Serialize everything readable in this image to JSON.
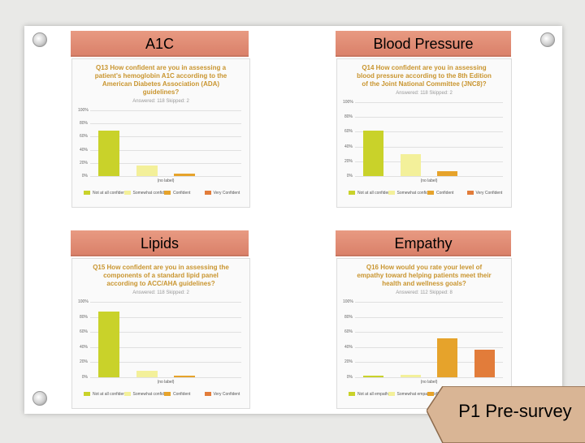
{
  "panels": [
    {
      "key": "a1c",
      "header": "A1C",
      "question": "Q13 How confident are you in assessing a\npatient's hemoglobin A1C according to the\nAmerican Diabetes Association (ADA)\nguidelines?",
      "answered": "Answered: 118    Skipped: 2",
      "chart_data": {
        "type": "bar",
        "categories": [
          "Not at all confident",
          "Somewhat confident",
          "Confident",
          "Very Confident"
        ],
        "values": [
          69,
          16,
          4,
          0
        ],
        "yticks": [
          "0%",
          "20%",
          "40%",
          "60%",
          "80%",
          "100%"
        ],
        "ylim": [
          0,
          100
        ],
        "xlabel": "(no label)",
        "colors": [
          "#c9d22a",
          "#f3f09a",
          "#e6a32b",
          "#e27c3a"
        ]
      }
    },
    {
      "key": "bp",
      "header": "Blood Pressure",
      "question": "Q14 How confident are you in assessing\nblood pressure according to the 8th Edition\nof the Joint National Committee (JNC8)?",
      "answered": "Answered: 118    Skipped: 2",
      "chart_data": {
        "type": "bar",
        "categories": [
          "Not at all confident",
          "Somewhat confident",
          "Confident",
          "Very Confident"
        ],
        "values": [
          61,
          30,
          7,
          0
        ],
        "yticks": [
          "0%",
          "20%",
          "40%",
          "60%",
          "80%",
          "100%"
        ],
        "ylim": [
          0,
          100
        ],
        "xlabel": "(no label)",
        "colors": [
          "#c9d22a",
          "#f3f09a",
          "#e6a32b",
          "#e27c3a"
        ]
      }
    },
    {
      "key": "lipids",
      "header": "Lipids",
      "question": "Q15 How confident are you in assessing the\ncomponents of a standard lipid panel\naccording to ACC/AHA guidelines?",
      "answered": "Answered: 118    Skipped: 2",
      "chart_data": {
        "type": "bar",
        "categories": [
          "Not at all confident",
          "Somewhat confident",
          "Confident",
          "Very Confident"
        ],
        "values": [
          87,
          9,
          2,
          0
        ],
        "yticks": [
          "0%",
          "20%",
          "40%",
          "60%",
          "80%",
          "100%"
        ],
        "ylim": [
          0,
          100
        ],
        "xlabel": "(no label)",
        "colors": [
          "#c9d22a",
          "#f3f09a",
          "#e6a32b",
          "#e27c3a"
        ]
      }
    },
    {
      "key": "empathy",
      "header": "Empathy",
      "question": "Q16 How would you rate your level of\nempathy toward helping patients meet their\nhealth and wellness goals?",
      "answered": "Answered: 112    Skipped: 8",
      "chart_data": {
        "type": "bar",
        "categories": [
          "Not at all empathetic",
          "Somewhat empathetic",
          "Empathetic",
          "Very empathetic"
        ],
        "values": [
          2,
          3,
          52,
          37
        ],
        "yticks": [
          "0%",
          "20%",
          "40%",
          "60%",
          "80%",
          "100%"
        ],
        "ylim": [
          0,
          100
        ],
        "xlabel": "(no label)",
        "colors": [
          "#c9d22a",
          "#f3f09a",
          "#e6a32b",
          "#e27c3a"
        ]
      }
    }
  ],
  "note": "P1 Pre-survey"
}
